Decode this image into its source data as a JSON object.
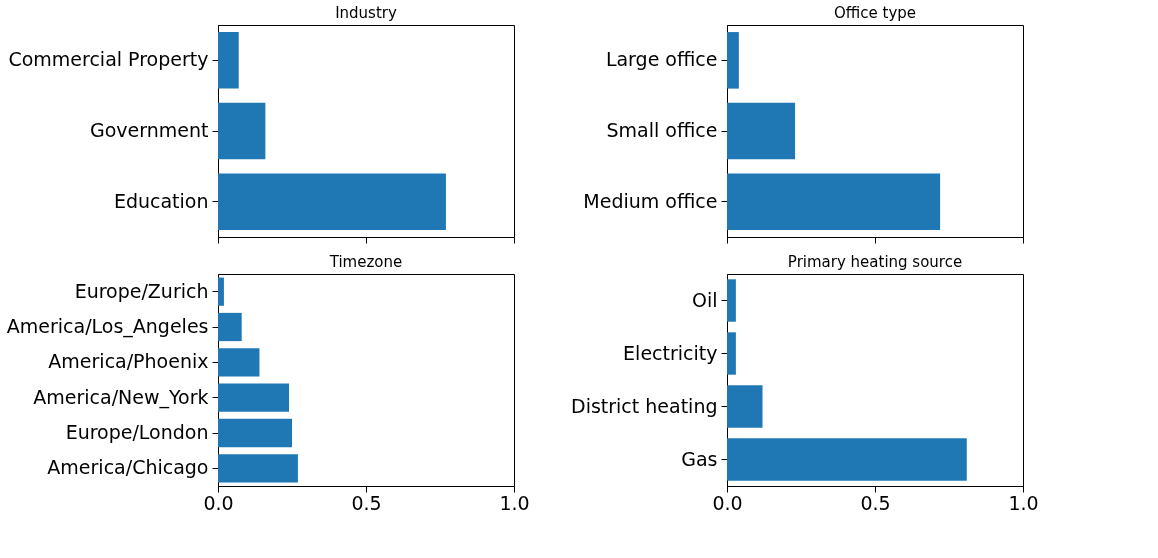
{
  "chart_data": [
    {
      "type": "bar",
      "orientation": "horizontal",
      "title": "Industry",
      "categories": [
        "Commercial Property",
        "Government",
        "Education"
      ],
      "values": [
        0.07,
        0.16,
        0.77
      ],
      "color": "#1f77b4",
      "xlim": [
        0,
        1
      ],
      "xticks": [
        {
          "value": 0,
          "label": null
        },
        {
          "value": 0.5,
          "label": null
        },
        {
          "value": 1,
          "label": null
        }
      ],
      "tick_labels": "y",
      "grid": false
    },
    {
      "type": "bar",
      "orientation": "horizontal",
      "title": "Office type",
      "categories": [
        "Large office",
        "Small office",
        "Medium office"
      ],
      "values": [
        0.04,
        0.23,
        0.72
      ],
      "color": "#1f77b4",
      "xlim": [
        0,
        1
      ],
      "xticks": [
        {
          "value": 0,
          "label": null
        },
        {
          "value": 0.5,
          "label": null
        },
        {
          "value": 1,
          "label": null
        }
      ],
      "tick_labels": "y",
      "grid": false
    },
    {
      "type": "bar",
      "orientation": "horizontal",
      "title": "Timezone",
      "categories": [
        "Europe/Zurich",
        "America/Los_Angeles",
        "America/Phoenix",
        "America/New_York",
        "Europe/London",
        "America/Chicago"
      ],
      "values": [
        0.02,
        0.08,
        0.14,
        0.24,
        0.25,
        0.27
      ],
      "color": "#1f77b4",
      "xlim": [
        0,
        1
      ],
      "xticks": [
        {
          "value": 0,
          "label": "0.0"
        },
        {
          "value": 0.5,
          "label": "0.5"
        },
        {
          "value": 1,
          "label": "1.0"
        }
      ],
      "grid": false
    },
    {
      "type": "bar",
      "orientation": "horizontal",
      "title": "Primary heating source",
      "categories": [
        "Oil",
        "Electricity",
        "District heating",
        "Gas"
      ],
      "values": [
        0.03,
        0.03,
        0.12,
        0.81
      ],
      "color": "#1f77b4",
      "xlim": [
        0,
        1
      ],
      "xticks": [
        {
          "value": 0,
          "label": "0.0"
        },
        {
          "value": 0.5,
          "label": "0.5"
        },
        {
          "value": 1,
          "label": "1.0"
        }
      ],
      "grid": false
    }
  ]
}
